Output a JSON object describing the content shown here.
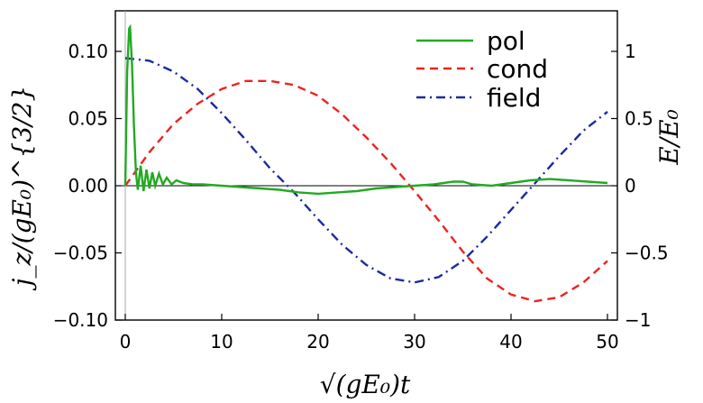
{
  "chart_data": {
    "type": "line",
    "xlabel": "√(gE₀)t",
    "ylabel": "j_z/(gE₀)^{3/2}",
    "ylabel_right": "E/E₀",
    "xlim": [
      0,
      50
    ],
    "ylim": [
      -0.1,
      0.125
    ],
    "ylim_right": [
      -1,
      1.25
    ],
    "x_ticks": [
      0,
      10,
      20,
      30,
      40,
      50
    ],
    "x_tick_labels": [
      "0",
      "10",
      "20",
      "30",
      "40",
      "50"
    ],
    "y_ticks": [
      0.1,
      0.05,
      0.0,
      -0.05,
      -0.1
    ],
    "y_tick_labels": [
      "0.10",
      "0.05",
      "0.00",
      "−0.05",
      "−0.10"
    ],
    "y_right_ticks": [
      1,
      0.5,
      0,
      -0.5,
      -1
    ],
    "y_right_tick_labels": [
      "1",
      "0.5",
      "0",
      "−0.5",
      "−1"
    ],
    "legend_position": "top-right",
    "series": [
      {
        "name": "pol",
        "axis": "left",
        "color": "#22aa22",
        "style": "solid",
        "x": [
          0,
          0.2,
          0.4,
          0.5,
          0.7,
          0.9,
          1.1,
          1.3,
          1.6,
          1.9,
          2.2,
          2.5,
          2.8,
          3.1,
          3.5,
          3.9,
          4.3,
          4.8,
          5.3,
          6,
          7,
          8,
          10,
          12,
          14,
          16,
          18,
          20,
          22,
          24,
          26,
          28,
          30,
          32,
          34,
          35,
          36,
          38,
          40,
          42,
          44,
          46,
          48,
          50
        ],
        "values": [
          0,
          0.085,
          0.117,
          0.118,
          0.09,
          0.045,
          0.01,
          -0.003,
          0.015,
          -0.004,
          0.012,
          -0.002,
          0.01,
          0.0,
          0.009,
          0.001,
          0.006,
          0.001,
          0.004,
          0.002,
          0.001,
          0.001,
          0.0,
          -0.001,
          -0.002,
          -0.003,
          -0.005,
          -0.006,
          -0.005,
          -0.004,
          -0.002,
          -0.001,
          0.0,
          0.001,
          0.003,
          0.003,
          0.001,
          0.0,
          0.002,
          0.004,
          0.005,
          0.004,
          0.003,
          0.002
        ]
      },
      {
        "name": "cond",
        "axis": "left",
        "color": "#ee2222",
        "style": "dashed",
        "x": [
          0,
          2.5,
          5,
          7.5,
          10,
          12.5,
          15,
          17.5,
          20,
          22.5,
          25,
          27.5,
          30,
          32.5,
          35,
          37.5,
          40,
          42.5,
          45,
          47.5,
          50
        ],
        "values": [
          0.0,
          0.025,
          0.046,
          0.061,
          0.072,
          0.078,
          0.078,
          0.075,
          0.067,
          0.053,
          0.036,
          0.017,
          -0.004,
          -0.026,
          -0.049,
          -0.069,
          -0.081,
          -0.086,
          -0.083,
          -0.072,
          -0.056
        ]
      },
      {
        "name": "field",
        "axis": "right",
        "color": "#1a2aa0",
        "style": "dashdot",
        "x": [
          0,
          2.5,
          5,
          7.5,
          10,
          12.5,
          15,
          17.5,
          20,
          22.5,
          25,
          27.5,
          30,
          32.5,
          35,
          37.5,
          40,
          42.5,
          45,
          47.5,
          50
        ],
        "values": [
          0.95,
          0.93,
          0.85,
          0.72,
          0.54,
          0.34,
          0.13,
          -0.05,
          -0.25,
          -0.44,
          -0.59,
          -0.69,
          -0.72,
          -0.68,
          -0.56,
          -0.38,
          -0.18,
          0.02,
          0.22,
          0.41,
          0.55
        ]
      }
    ]
  }
}
